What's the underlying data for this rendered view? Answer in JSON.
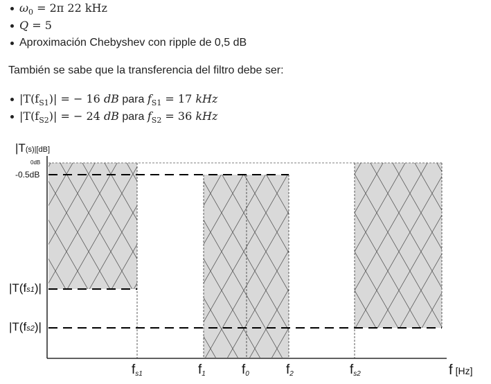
{
  "spec_list": [
    {
      "sym": "ω",
      "sub": "0",
      "rest": " = 2π 22 kHz"
    },
    {
      "sym": "Q",
      "rest": " = 5"
    },
    {
      "text": "Aproximación Chebyshev con ripple de 0,5 dB"
    }
  ],
  "paragraph": "También se sabe que la transferencia del filtro debe ser:",
  "conditions": [
    {
      "lhs_pre": "|T(f",
      "lhs_sub": "S1",
      "lhs_post": ")|",
      "value": " = − 16 ",
      "unit": "dB",
      "mid": " para ",
      "f": "f",
      "f_sub": "S1",
      "freq": " = 17 ",
      "freq_unit": "kHz"
    },
    {
      "lhs_pre": "|T(f",
      "lhs_sub": "S2",
      "lhs_post": ")|",
      "value": " = − 24 ",
      "unit": "dB",
      "mid": " para ",
      "f": "f",
      "f_sub": "S2",
      "freq": " = 36 ",
      "freq_unit": "kHz"
    }
  ],
  "diagram": {
    "y_axis_label": "|T",
    "y_axis_label_paren": "(s)",
    "y_axis_label_unit": "|[dB]",
    "zero_db": "0dB",
    "ripple_db": "-0.5dB",
    "t_fs1_pre": "|T(f",
    "t_fs1_sub": "s1",
    "t_fs1_post": ")|",
    "t_fs2_pre": "|T(f",
    "t_fs2_sub": "s2",
    "t_fs2_post": ")|",
    "x_axis": "f",
    "x_unit": "[Hz]",
    "ticks": {
      "fs1": {
        "main": "f",
        "sub": "s1"
      },
      "f1": {
        "main": "f",
        "sub": "1"
      },
      "f0": {
        "main": "f",
        "sub": "0"
      },
      "f2": {
        "main": "f",
        "sub": "2"
      },
      "fs2": {
        "main": "f",
        "sub": "s2"
      }
    },
    "colors": {
      "region_fill": "#d9d9d9",
      "hatch": "#555555",
      "axis": "#000000"
    }
  }
}
